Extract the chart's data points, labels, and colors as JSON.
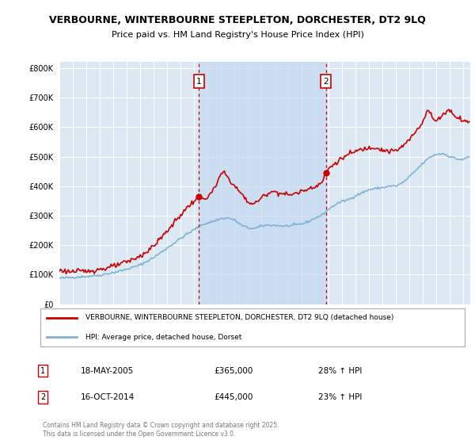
{
  "title_line1": "VERBOURNE, WINTERBOURNE STEEPLETON, DORCHESTER, DT2 9LQ",
  "title_line2": "Price paid vs. HM Land Registry's House Price Index (HPI)",
  "background_color": "#dce9f5",
  "grid_color": "#ffffff",
  "house_color": "#cc0000",
  "hpi_color": "#7fb3d3",
  "vline_color": "#cc0000",
  "shade_color": "#c5d8ef",
  "marker1_year": 2005.37,
  "marker2_year": 2014.79,
  "legend_house": "VERBOURNE, WINTERBOURNE STEEPLETON, DORCHESTER, DT2 9LQ (detached house)",
  "legend_hpi": "HPI: Average price, detached house, Dorset",
  "annotation1_date": "18-MAY-2005",
  "annotation1_price": "£365,000",
  "annotation1_hpi": "28% ↑ HPI",
  "annotation2_date": "16-OCT-2014",
  "annotation2_price": "£445,000",
  "annotation2_hpi": "23% ↑ HPI",
  "copyright": "Contains HM Land Registry data © Crown copyright and database right 2025.\nThis data is licensed under the Open Government Licence v3.0.",
  "ylim_max": 820000,
  "yticks": [
    0,
    100000,
    200000,
    300000,
    400000,
    500000,
    600000,
    700000,
    800000
  ],
  "xlim_min": 1995.0,
  "xlim_max": 2025.5
}
